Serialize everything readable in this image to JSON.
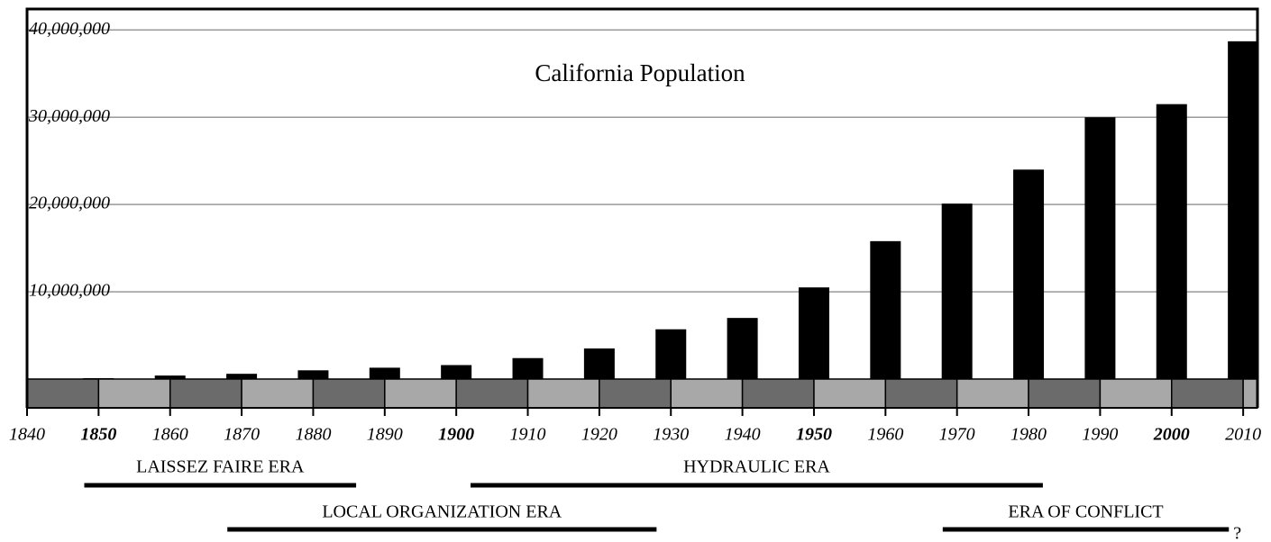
{
  "chart_data": {
    "type": "bar",
    "title": "California Population",
    "x": [
      1850,
      1860,
      1870,
      1880,
      1890,
      1900,
      1910,
      1920,
      1930,
      1940,
      1950,
      1960,
      1970,
      1980,
      1990,
      2000,
      2010
    ],
    "values": [
      100000,
      400000,
      600000,
      1000000,
      1300000,
      1600000,
      2400000,
      3500000,
      5700000,
      7000000,
      10500000,
      15800000,
      20100000,
      24000000,
      30000000,
      31500000,
      38700000
    ],
    "color": "#000000",
    "xlim": [
      1840,
      2012
    ],
    "xticks": [
      1840,
      1850,
      1860,
      1870,
      1880,
      1890,
      1900,
      1910,
      1920,
      1930,
      1940,
      1950,
      1960,
      1970,
      1980,
      1990,
      2000,
      2010
    ],
    "emphasized_xticks": [
      1850,
      1900,
      1950,
      2000
    ],
    "ylim": [
      0,
      42400000
    ],
    "yticks": [
      {
        "value": 10000000,
        "label": "10,000,000"
      },
      {
        "value": 20000000,
        "label": "20,000,000"
      },
      {
        "value": 30000000,
        "label": "30,000,000"
      },
      {
        "value": 40000000,
        "label": "40,000,000"
      }
    ],
    "grid": true,
    "eras": [
      {
        "name": "LAISSEZ FAIRE ERA",
        "start": 1848,
        "end": 1886
      },
      {
        "name": "HYDRAULIC ERA",
        "start": 1902,
        "end": 1982
      },
      {
        "name": "LOCAL ORGANIZATION ERA",
        "start": 1868,
        "end": 1928
      },
      {
        "name": "ERA OF  CONFLICT",
        "start": 1968,
        "end": 2008,
        "end_label": "?"
      }
    ]
  }
}
